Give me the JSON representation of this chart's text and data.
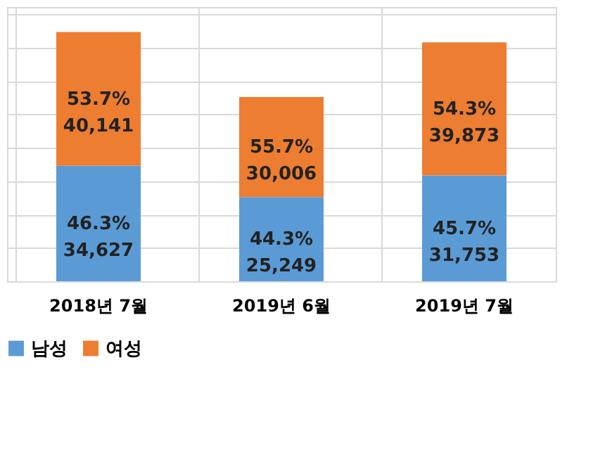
{
  "chart_data": {
    "type": "bar",
    "stacked": true,
    "categories": [
      "2018년 7월",
      "2019년 6월",
      "2019년 7월"
    ],
    "series": [
      {
        "name": "남성",
        "color": "#5b9bd5",
        "values": [
          34627,
          25249,
          31753
        ],
        "value_labels": [
          "46.3%\n34,627",
          "44.3%\n25,249",
          "45.7%\n31,753"
        ]
      },
      {
        "name": "여성",
        "color": "#ed7d31",
        "values": [
          40141,
          30006,
          39873
        ],
        "value_labels": [
          "53.7%\n40,141",
          "55.7%\n30,006",
          "54.3%\n39,873"
        ]
      }
    ],
    "grid": true,
    "legend": "bottom",
    "tick_labels": "x"
  }
}
